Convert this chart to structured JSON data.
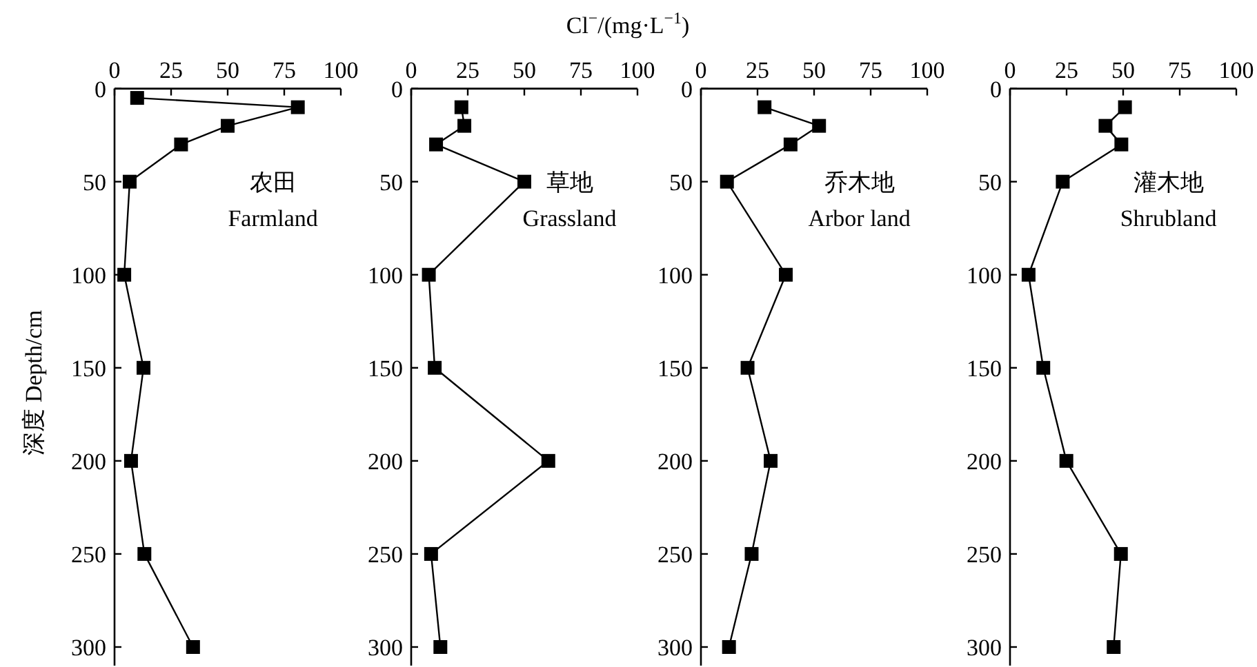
{
  "chart_data": [
    {
      "type": "line",
      "ylabel": "深度 Depth/cm",
      "annotations": [
        "农田",
        "Farmland"
      ],
      "xlim": [
        0,
        100
      ],
      "ylim": [
        310,
        0
      ],
      "xticks": [
        0,
        25,
        50,
        75,
        100
      ],
      "yticks": [
        0,
        50,
        100,
        150,
        200,
        250,
        300
      ],
      "marker": "square",
      "line_style": "solid",
      "series": [
        {
          "color": "#000000",
          "x": [
            10,
            81,
            50,
            29.4,
            6.7,
            4.3,
            12.8,
            7.3,
            13.2,
            34.7
          ],
          "values": [
            5,
            10,
            20,
            30,
            50,
            100,
            150,
            200,
            250,
            300
          ]
        }
      ]
    },
    {
      "type": "line",
      "xlabel": "Cl$^{−}$/(mg·L$^{−1}$)",
      "annotations": [
        "草地",
        "Grassland"
      ],
      "xlim": [
        0,
        100
      ],
      "ylim": [
        310,
        0
      ],
      "xticks": [
        0,
        25,
        50,
        75,
        100
      ],
      "yticks": [
        0,
        50,
        100,
        150,
        200,
        250,
        300
      ],
      "marker": "square",
      "line_style": "solid",
      "series": [
        {
          "color": "#000000",
          "x": [
            22.2,
            23.5,
            11,
            50,
            7.8,
            10.4,
            60.6,
            8.8,
            12.9
          ],
          "values": [
            10,
            20,
            30,
            50,
            100,
            150,
            200,
            250,
            300
          ]
        }
      ]
    },
    {
      "type": "line",
      "annotations": [
        "乔木地",
        "Arbor land"
      ],
      "xlim": [
        0,
        100
      ],
      "ylim": [
        310,
        0
      ],
      "xticks": [
        0,
        25,
        50,
        75,
        100
      ],
      "yticks": [
        0,
        50,
        100,
        150,
        200,
        250,
        300
      ],
      "marker": "square",
      "line_style": "solid",
      "series": [
        {
          "color": "#000000",
          "x": [
            28.1,
            52.2,
            39.6,
            11.5,
            37.5,
            20.6,
            30.8,
            22.4,
            12.4
          ],
          "values": [
            10,
            20,
            30,
            50,
            100,
            150,
            200,
            250,
            300
          ]
        }
      ]
    },
    {
      "type": "line",
      "annotations": [
        "灌木地",
        "Shrubland"
      ],
      "xlim": [
        0,
        100
      ],
      "ylim": [
        310,
        0
      ],
      "xticks": [
        0,
        25,
        50,
        75,
        100
      ],
      "yticks": [
        0,
        50,
        100,
        150,
        200,
        250,
        300
      ],
      "marker": "square",
      "line_style": "solid",
      "series": [
        {
          "color": "#000000",
          "x": [
            50.8,
            42.2,
            49.2,
            23.3,
            8.2,
            14.7,
            24.9,
            49,
            45.8
          ],
          "values": [
            10,
            20,
            30,
            50,
            100,
            150,
            200,
            250,
            300
          ]
        }
      ]
    }
  ]
}
